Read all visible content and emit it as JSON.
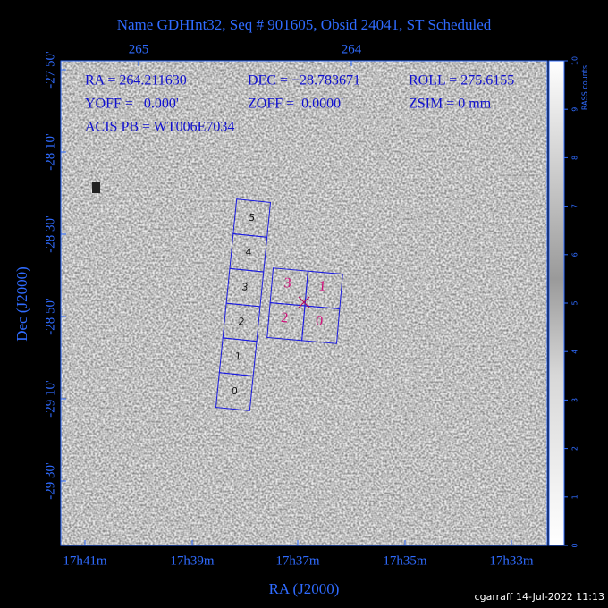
{
  "title": "Name GDHInt32, Seq # 901605, Obsid 24041, ST Scheduled",
  "header": {
    "lines": [
      [
        "RA = 264.211630",
        "DEC = −28.783671",
        "ROLL = 275.6155"
      ],
      [
        "YOFF =   0.000'",
        "ZOFF =  0.0000'",
        "ZSIM = 0 mm"
      ],
      [
        "ACIS PB = WT006E7034"
      ]
    ]
  },
  "axes": {
    "x_label": "RA (J2000)",
    "y_label": "Dec (J2000)",
    "top_ticks": [
      "265",
      "264"
    ],
    "bottom_ticks": [
      "17h41m",
      "17h39m",
      "17h37m",
      "17h35m",
      "17h33m"
    ],
    "left_ticks": [
      "-27 50'",
      "-28 10'",
      "-28 30'",
      "-28 50'",
      "-29 10'",
      "-29 30'"
    ]
  },
  "colorbar": {
    "label": "RASS counts",
    "ticks": [
      "0",
      "1",
      "2",
      "3",
      "4",
      "5",
      "6",
      "7",
      "8",
      "9",
      "10"
    ]
  },
  "chips": {
    "acis_s": [
      "0",
      "1",
      "2",
      "3",
      "4",
      "5"
    ],
    "acis_i": [
      "3",
      "1",
      "2",
      "0"
    ]
  },
  "footer": "cgarraff 14-Jul-2022 11:13"
}
